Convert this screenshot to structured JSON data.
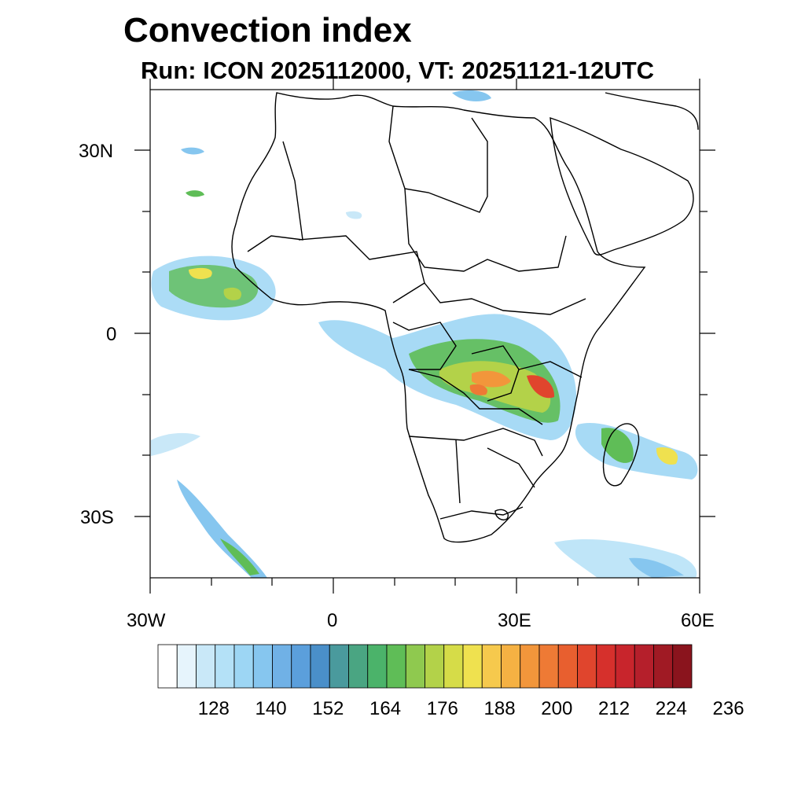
{
  "header": {
    "title": "Convection index",
    "subtitle": "Run: ICON 2025112000,  VT: 20251121-12UTC"
  },
  "map": {
    "lat_labels": [
      "30N",
      "0",
      "30S"
    ],
    "lon_labels": [
      "30W",
      "0",
      "30E",
      "60E"
    ],
    "domain": {
      "lon_min": -30,
      "lon_max": 60,
      "lat_min": -40,
      "lat_max": 40
    }
  },
  "colorbar": {
    "labels": [
      "128",
      "140",
      "152",
      "164",
      "176",
      "188",
      "200",
      "212",
      "224",
      "236"
    ],
    "colors": [
      "#ffffff",
      "#e6f4fc",
      "#c9e8f8",
      "#b4e1f7",
      "#9dd6f4",
      "#86c6ef",
      "#70b1e6",
      "#5b9fdc",
      "#4a8fc9",
      "#4a9a9d",
      "#4aa582",
      "#4bb36a",
      "#5fbd57",
      "#8fc94f",
      "#b3d249",
      "#d6dc48",
      "#efe14f",
      "#f6c94d",
      "#f5b143",
      "#f2963b",
      "#ee7a35",
      "#e85f2f",
      "#e0452d",
      "#d6302c",
      "#c8252c",
      "#b51f2b",
      "#a01a24",
      "#8a141d"
    ]
  }
}
